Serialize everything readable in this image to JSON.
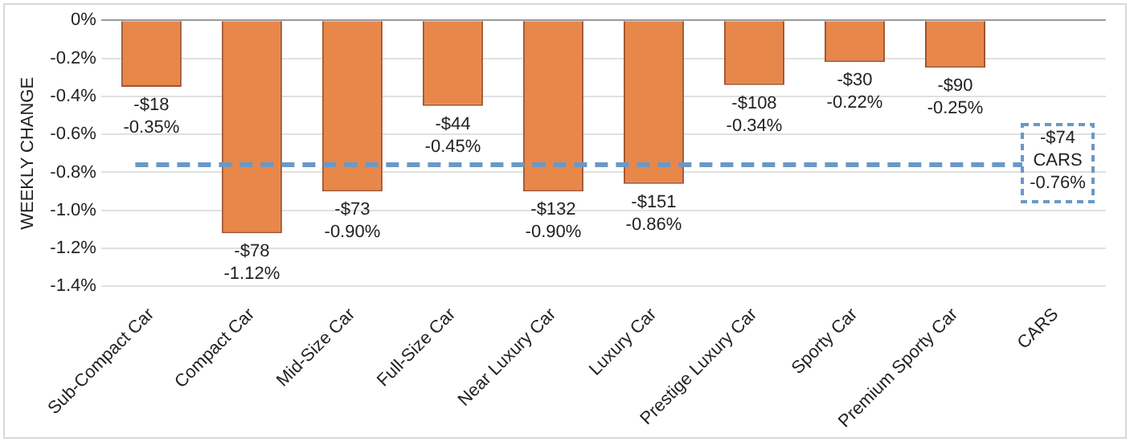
{
  "chart_data": {
    "type": "bar",
    "ylabel": "WEEKLY CHANGE",
    "categories": [
      "Sub-Compact Car",
      "Compact Car",
      "Mid-Size Car",
      "Full-Size Car",
      "Near Luxury Car",
      "Luxury Car",
      "Prestige Luxury Car",
      "Sporty Car",
      "Premium Sporty Car",
      "CARS"
    ],
    "series": [
      {
        "color": "#e8874a",
        "values": [
          -0.35,
          -1.12,
          -0.9,
          -0.45,
          -0.9,
          -0.86,
          -0.34,
          -0.22,
          -0.25,
          null
        ],
        "value_labels": [
          "-$18\n-0.35%",
          "-$78\n-1.12%",
          "-$73\n-0.90%",
          "-$44\n-0.45%",
          "-$132\n-0.90%",
          "-$151\n-0.86%",
          "-$108\n-0.34%",
          "-$30\n-0.22%",
          "-$90\n-0.25%",
          null
        ]
      }
    ],
    "ylim": [
      -1.4,
      0
    ],
    "yticks": [
      {
        "value": 0,
        "label": "0%"
      },
      {
        "value": -0.2,
        "label": "-0.2%"
      },
      {
        "value": -0.4,
        "label": "-0.4%"
      },
      {
        "value": -0.6,
        "label": "-0.6%"
      },
      {
        "value": -0.8,
        "label": "-0.8%"
      },
      {
        "value": -1.0,
        "label": "-1.0%"
      },
      {
        "value": -1.2,
        "label": "-1.2%"
      },
      {
        "value": -1.4,
        "label": "-1.4%"
      }
    ],
    "grid": "y",
    "legend": false,
    "ref_lines": [
      {
        "axis": "y",
        "value": -0.76,
        "label": "-$74\nCARS\n-0.76%",
        "color": "#6a98c8",
        "line_style": "dashed"
      }
    ]
  }
}
